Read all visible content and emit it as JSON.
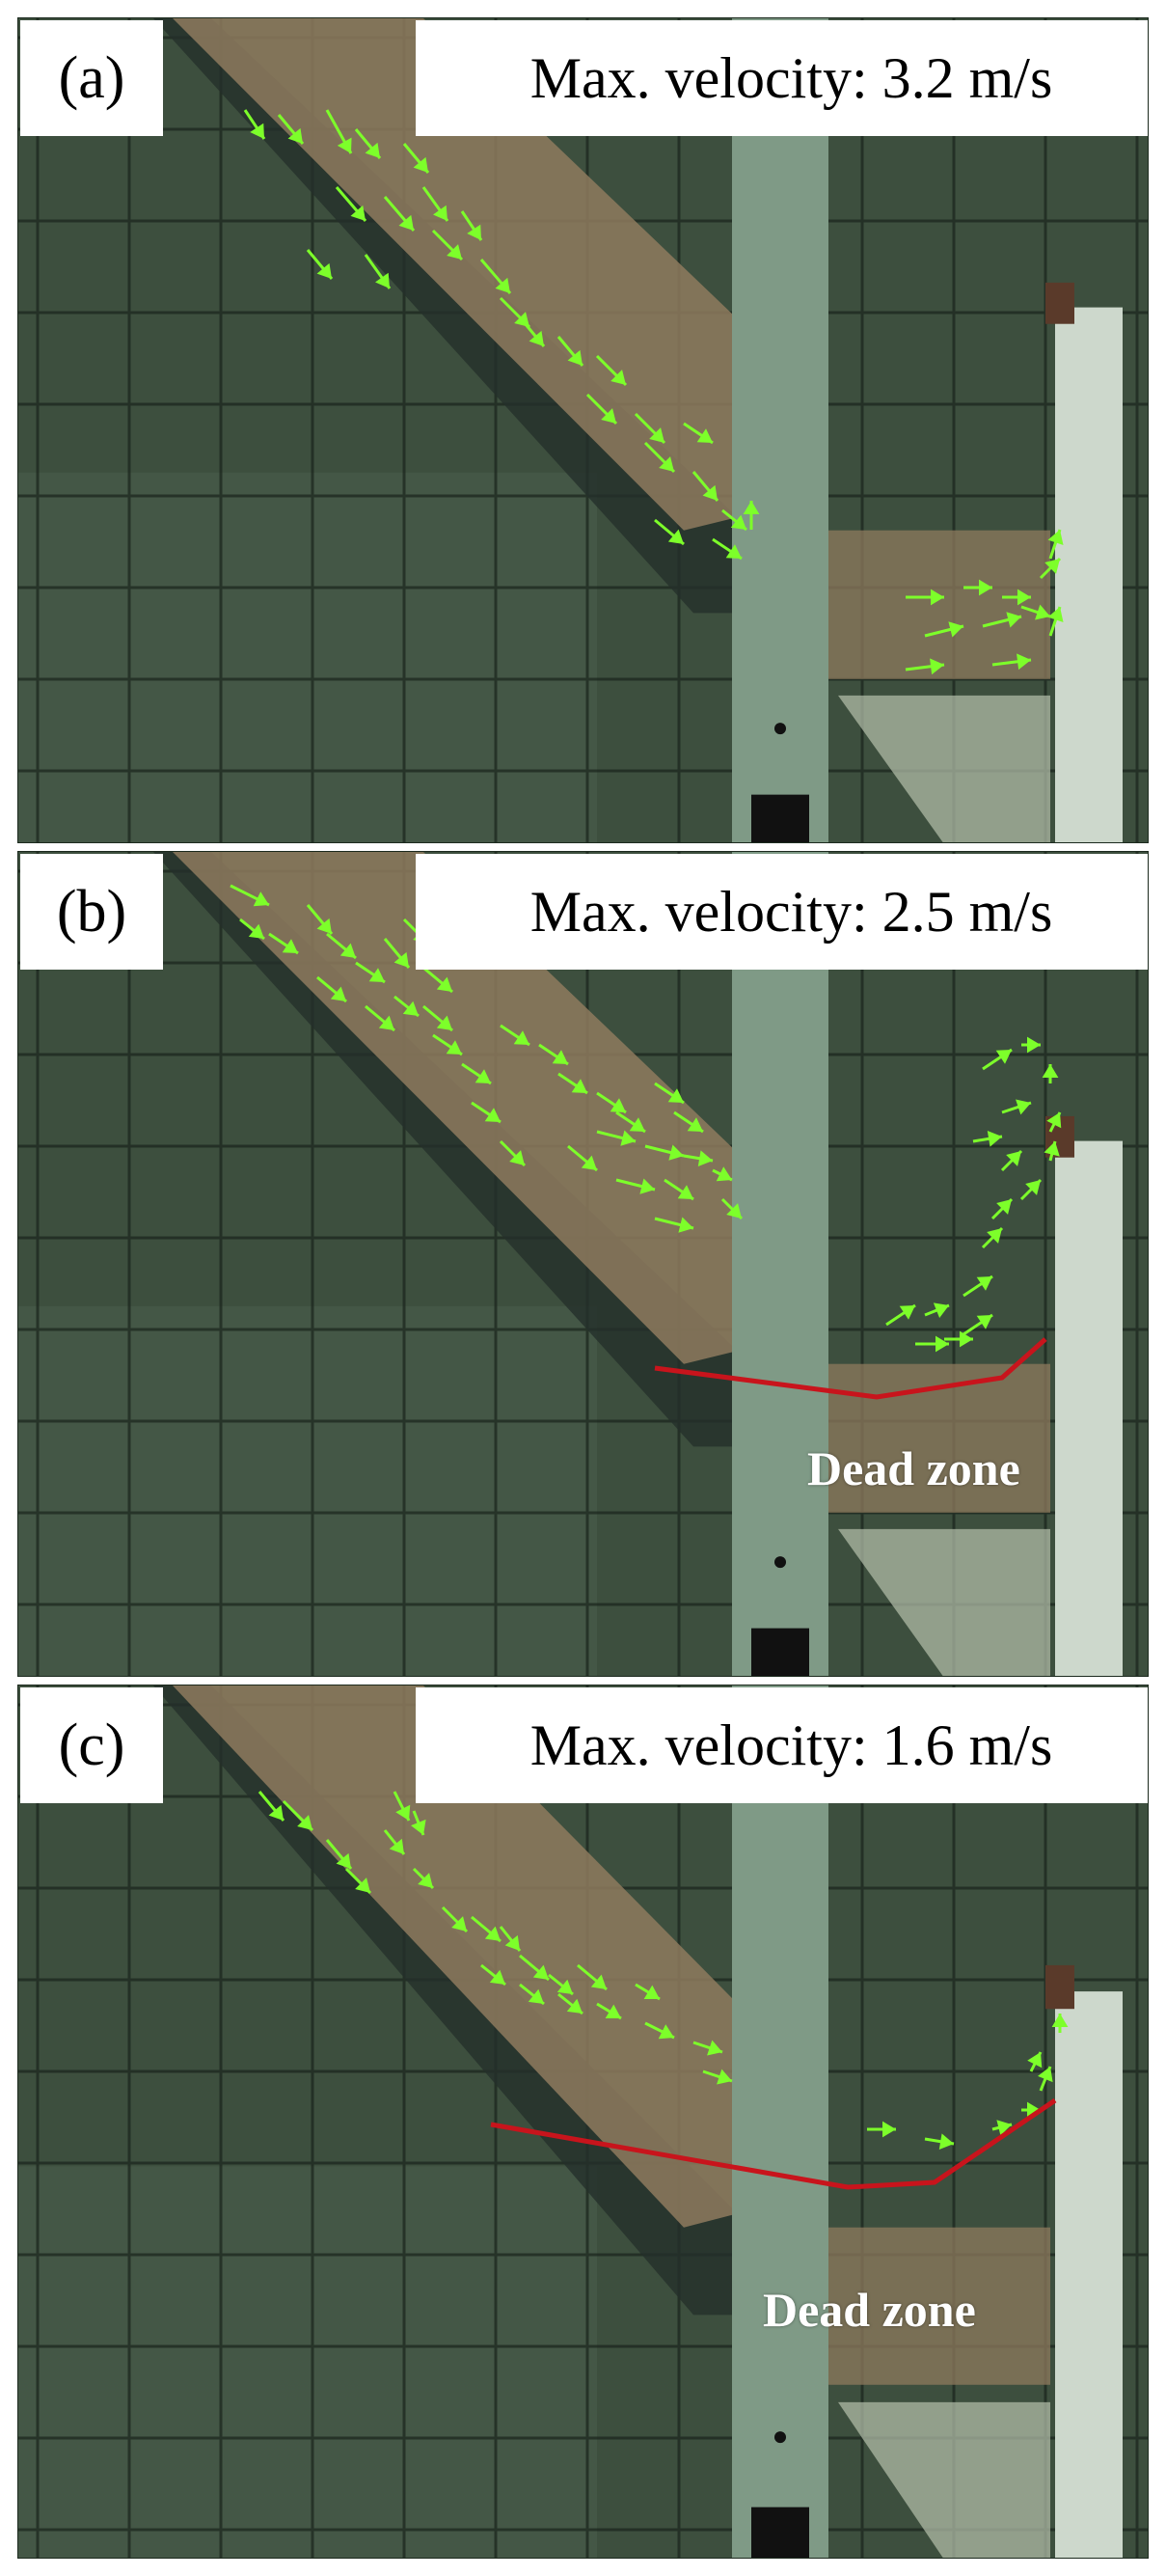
{
  "panels": [
    {
      "letter": "(a)",
      "velocity_text": "Max. velocity: 3.2 m/s",
      "dead_zone": ""
    },
    {
      "letter": "(b)",
      "velocity_text": "Max. velocity: 2.5 m/s",
      "dead_zone": "Dead zone"
    },
    {
      "letter": "(c)",
      "velocity_text": "Max. velocity: 1.6 m/s",
      "dead_zone": "Dead zone"
    }
  ],
  "colors": {
    "background": "#3d4f3e",
    "grid": "#1a241c",
    "sand": "#8e7a5e",
    "column": "#7f9a86",
    "velocity_arrows": "#7dff2a",
    "dead_zone_line": "#c8141c"
  }
}
